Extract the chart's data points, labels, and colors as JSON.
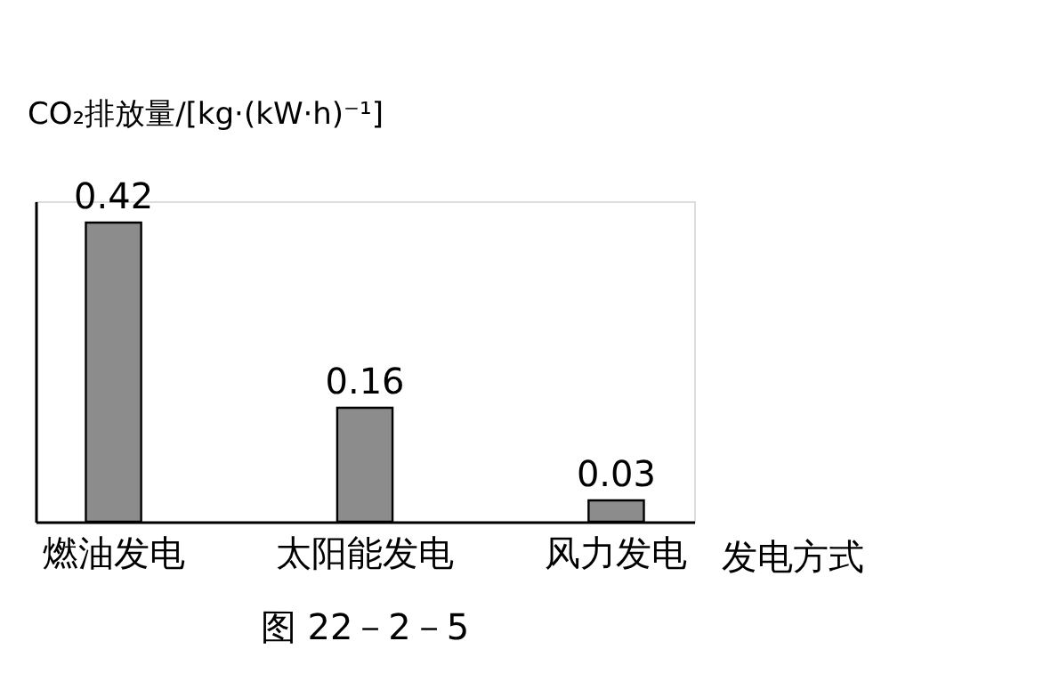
{
  "chart_data": {
    "type": "bar",
    "ylabel": "CO₂排放量/[kg·(kW·h)⁻¹]",
    "xlabel": "发电方式",
    "categories": [
      "燃油发电",
      "太阳能发电",
      "风力发电"
    ],
    "values": [
      0.42,
      0.16,
      0.03
    ],
    "color": "#8c8c8c",
    "data_labels": true,
    "tick_labels": "x",
    "grid": false,
    "annotations": [
      "图 22－2－5"
    ]
  }
}
